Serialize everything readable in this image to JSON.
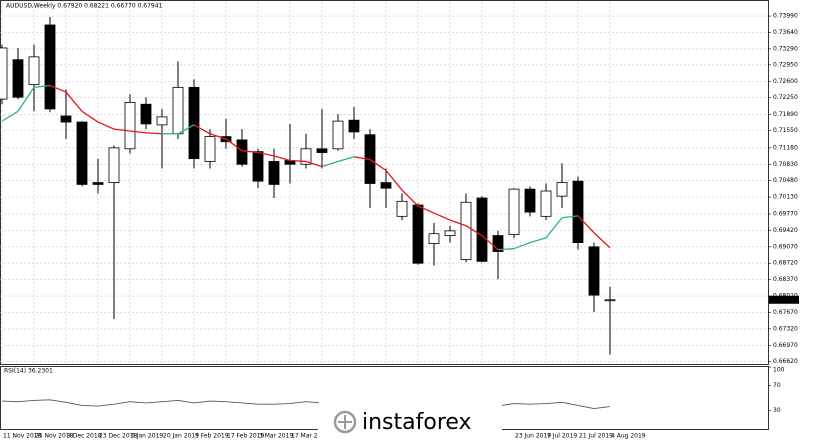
{
  "chart_data": [
    {
      "type": "candlestick",
      "title": "AUDUSD,Weekly  0.67920 0.68221 0.66770 0.67941",
      "categories": [
        "11 Nov 2018",
        null,
        "25 Nov 2018",
        null,
        "9 Dec 2018",
        null,
        "23 Dec 2018",
        null,
        "6 Jan 2019",
        null,
        "20 Jan 2019",
        null,
        "3 Feb 2019",
        null,
        "17 Feb 2019",
        null,
        "3 Mar 2019",
        null,
        "17 Mar 2019",
        null,
        null,
        null,
        null,
        null,
        null,
        null,
        null,
        null,
        null,
        null,
        "9",
        null,
        "23 Jun 2019",
        null,
        "7 Jul 2019",
        null,
        "21 Jul 2019",
        null,
        "4 Aug 2019"
      ],
      "open": [
        0.7222,
        0.7306,
        0.7253,
        0.738,
        0.7186,
        0.7173,
        0.7044,
        0.7044,
        0.7116,
        0.7211,
        0.7167,
        0.7148,
        0.7247,
        0.7089,
        0.7142,
        0.7135,
        0.711,
        0.7089,
        0.7091,
        0.7083,
        0.7116,
        0.7116,
        0.7177,
        0.7146,
        0.7044,
        0.6972,
        0.6996,
        0.6914,
        0.6931,
        0.688,
        0.7011,
        0.6931,
        0.6933,
        0.703,
        0.6972,
        0.7015,
        0.7047,
        0.6907,
        0.6792
      ],
      "high": [
        0.7338,
        0.7331,
        0.7338,
        0.7397,
        0.7243,
        0.7175,
        0.7095,
        0.7123,
        0.7232,
        0.7226,
        0.7201,
        0.7302,
        0.7264,
        0.7158,
        0.718,
        0.7158,
        0.7116,
        0.7116,
        0.7169,
        0.7148,
        0.7201,
        0.719,
        0.7205,
        0.7158,
        0.7074,
        0.7021,
        0.7,
        0.6958,
        0.6952,
        0.7021,
        0.7015,
        0.6941,
        0.7032,
        0.7036,
        0.7042,
        0.7085,
        0.7057,
        0.6916,
        0.68221
      ],
      "low": [
        0.7211,
        0.7222,
        0.7196,
        0.7194,
        0.7137,
        0.7036,
        0.7021,
        0.6753,
        0.7106,
        0.7158,
        0.7074,
        0.7137,
        0.7074,
        0.7074,
        0.7116,
        0.7078,
        0.7032,
        0.7011,
        0.7042,
        0.7074,
        0.7074,
        0.7112,
        0.7137,
        0.699,
        0.699,
        0.6964,
        0.6869,
        0.6867,
        0.6916,
        0.6874,
        0.6874,
        0.6838,
        0.6926,
        0.6972,
        0.6964,
        0.699,
        0.6901,
        0.6768,
        0.6677
      ],
      "close": [
        0.7331,
        0.7226,
        0.7312,
        0.7201,
        0.7173,
        0.704,
        0.704,
        0.7118,
        0.7215,
        0.7169,
        0.7184,
        0.7247,
        0.7095,
        0.7142,
        0.7131,
        0.7083,
        0.7047,
        0.704,
        0.7083,
        0.7116,
        0.7108,
        0.7175,
        0.7152,
        0.7042,
        0.7032,
        0.7004,
        0.6872,
        0.6935,
        0.6941,
        0.7002,
        0.6876,
        0.6897,
        0.703,
        0.6981,
        0.7026,
        0.7044,
        0.6916,
        0.6804,
        0.67941
      ],
      "up_color": "#ffffff",
      "down_color": "#000000",
      "ma": {
        "values": [
          0.7175,
          0.7196,
          0.7247,
          0.7251,
          0.7237,
          0.7196,
          0.7173,
          0.7158,
          0.7154,
          0.715,
          0.7148,
          0.7148,
          0.7167,
          0.7148,
          0.7137,
          0.7112,
          0.7108,
          0.7101,
          0.7091,
          0.7089,
          0.7078,
          0.7089,
          0.7099,
          0.7093,
          0.707,
          0.7028,
          0.6994,
          0.6979,
          0.6964,
          0.6952,
          0.6931,
          0.6901,
          0.6903,
          0.6916,
          0.6926,
          0.6969,
          0.6973,
          0.6937,
          0.6905
        ],
        "rising_color": "#2bb673",
        "falling_color": "#e8141c"
      },
      "ylim": [
        0.6655,
        0.7429
      ],
      "yticks": [
        {
          "value": 0.7399,
          "label": "0.73990"
        },
        {
          "value": 0.7364,
          "label": "0.73640"
        },
        {
          "value": 0.7329,
          "label": "0.73290"
        },
        {
          "value": 0.7295,
          "label": "0.72950"
        },
        {
          "value": 0.726,
          "label": "0.72600"
        },
        {
          "value": 0.7225,
          "label": "0.72250"
        },
        {
          "value": 0.7189,
          "label": "0.71890"
        },
        {
          "value": 0.7155,
          "label": "0.71550"
        },
        {
          "value": 0.7118,
          "label": "0.71180"
        },
        {
          "value": 0.7083,
          "label": "0.70830"
        },
        {
          "value": 0.7048,
          "label": "0.70480"
        },
        {
          "value": 0.7013,
          "label": "0.70130"
        },
        {
          "value": 0.6977,
          "label": "0.69770"
        },
        {
          "value": 0.6942,
          "label": "0.69420"
        },
        {
          "value": 0.6907,
          "label": "0.69070"
        },
        {
          "value": 0.6872,
          "label": "0.68720"
        },
        {
          "value": 0.6837,
          "label": "0.68370"
        },
        {
          "value": 0.6802,
          "label": "0.68020"
        },
        {
          "value": 0.6767,
          "label": "0.67670"
        },
        {
          "value": 0.6732,
          "label": "0.67320"
        },
        {
          "value": 0.6697,
          "label": "0.66970"
        },
        {
          "value": 0.6662,
          "label": "0.66620"
        }
      ],
      "grid": true
    },
    {
      "type": "line",
      "title": "RSI(14) 36.2301",
      "values": [
        45,
        44,
        46,
        47,
        43,
        38,
        37,
        40,
        44,
        42,
        44,
        46,
        42,
        45,
        44,
        42,
        40,
        40,
        41,
        44,
        42,
        45,
        44,
        40,
        39,
        37,
        34,
        36,
        36,
        40,
        36,
        37,
        41,
        40,
        41,
        43,
        38,
        33,
        36.2301
      ],
      "color": "#555555",
      "ylim": [
        0,
        100
      ],
      "yticks": [
        30,
        70,
        100
      ],
      "grid": false
    }
  ],
  "watermark": "instaforex"
}
